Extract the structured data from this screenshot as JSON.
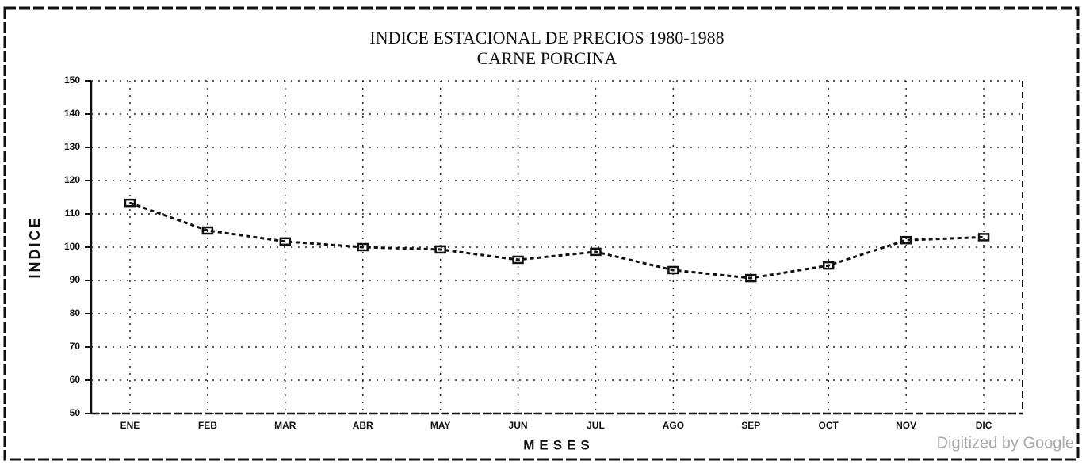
{
  "chart_data": {
    "type": "line",
    "title": "INDICE ESTACIONAL DE PRECIOS 1980-1988",
    "subtitle": "CARNE PORCINA",
    "x_label": "MESES",
    "y_label": "INDICE",
    "categories": [
      "ENE",
      "FEB",
      "MAR",
      "ABR",
      "MAY",
      "JUN",
      "JUL",
      "AGO",
      "SEP",
      "OCT",
      "NOV",
      "DIC"
    ],
    "series": [
      {
        "name": "INDICE",
        "color": "#111111",
        "values": [
          113.3,
          105,
          101.7,
          100,
          99.3,
          96.2,
          98.6,
          93.1,
          90.7,
          94.5,
          102.1,
          103
        ]
      }
    ],
    "ylim": [
      50,
      150
    ],
    "yticks": [
      50,
      60,
      70,
      80,
      90,
      100,
      110,
      120,
      130,
      140,
      150
    ],
    "grid": true,
    "watermark": "Digitized by Google"
  }
}
